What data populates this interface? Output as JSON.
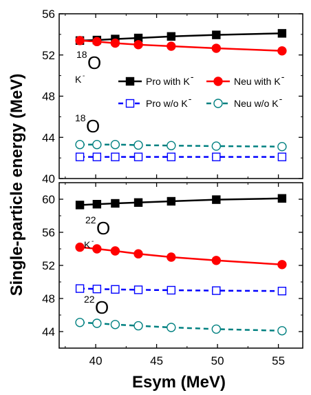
{
  "chart_data": {
    "type": "line",
    "xlabel": "Esym (MeV)",
    "ylabel": "Single-particle energy (MeV)",
    "xlim": [
      37,
      57
    ],
    "xticks": [
      40,
      45,
      50,
      55
    ],
    "x": [
      38.7,
      40.1,
      41.6,
      43.5,
      46.2,
      49.9,
      55.3
    ],
    "legend_position": "top-right",
    "panels": [
      {
        "ylim": [
          40,
          56
        ],
        "yticks": [
          40,
          44,
          48,
          52,
          56
        ],
        "annotations": [
          {
            "mass": "18",
            "element": "O",
            "sub": "K",
            "sup": "-"
          },
          {
            "mass": "18",
            "element": "O",
            "sub": "",
            "sup": ""
          }
        ],
        "legend": [
          {
            "name": "Pro with K",
            "sup": "-"
          },
          {
            "name": "Neu with K",
            "sup": "-"
          },
          {
            "name": "Pro w/o K",
            "sup": "-"
          },
          {
            "name": "Neu w/o K",
            "sup": "-"
          }
        ],
        "series": [
          {
            "name": "Pro with K-",
            "color": "#000000",
            "marker": "square-filled",
            "dash": "solid",
            "values": [
              53.4,
              53.45,
              53.55,
              53.65,
              53.8,
              53.95,
              54.1
            ]
          },
          {
            "name": "Neu with K-",
            "color": "#ff0000",
            "marker": "circle-filled",
            "dash": "solid",
            "values": [
              53.4,
              53.3,
              53.15,
              53.0,
              52.85,
              52.65,
              52.4
            ]
          },
          {
            "name": "Pro w/o K-",
            "color": "#0000ff",
            "marker": "square-open",
            "dash": "dashed",
            "values": [
              42.1,
              42.1,
              42.1,
              42.1,
              42.1,
              42.1,
              42.1
            ]
          },
          {
            "name": "Neu w/o K-",
            "color": "#008080",
            "marker": "circle-open",
            "dash": "dashed",
            "values": [
              43.3,
              43.3,
              43.3,
              43.25,
              43.2,
              43.15,
              43.1
            ]
          }
        ]
      },
      {
        "ylim": [
          42,
          62
        ],
        "yticks": [
          44,
          48,
          52,
          56,
          60
        ],
        "annotations": [
          {
            "mass": "22",
            "element": "O",
            "sub": "K",
            "sup": "-"
          },
          {
            "mass": "22",
            "element": "O",
            "sub": "",
            "sup": ""
          }
        ],
        "series": [
          {
            "name": "Pro with K-",
            "color": "#000000",
            "marker": "square-filled",
            "dash": "solid",
            "values": [
              59.3,
              59.4,
              59.5,
              59.6,
              59.75,
              59.95,
              60.1
            ]
          },
          {
            "name": "Neu with K-",
            "color": "#ff0000",
            "marker": "circle-filled",
            "dash": "solid",
            "values": [
              54.2,
              54.0,
              53.75,
              53.4,
              53.0,
              52.6,
              52.1
            ]
          },
          {
            "name": "Pro w/o K-",
            "color": "#0000ff",
            "marker": "square-open",
            "dash": "dashed",
            "values": [
              49.2,
              49.15,
              49.1,
              49.05,
              49.0,
              48.95,
              48.9
            ]
          },
          {
            "name": "Neu w/o K-",
            "color": "#008080",
            "marker": "circle-open",
            "dash": "dashed",
            "values": [
              45.1,
              45.0,
              44.85,
              44.7,
              44.5,
              44.3,
              44.1
            ]
          }
        ]
      }
    ]
  }
}
